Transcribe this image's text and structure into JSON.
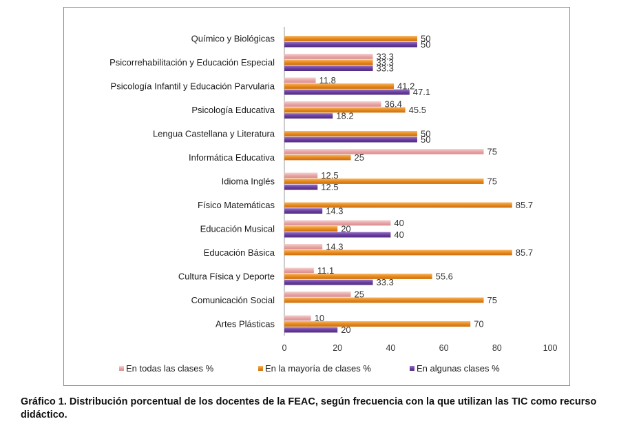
{
  "caption": "Gráfico 1. Distribución porcentual de los docentes de la FEAC, según frecuencia con la que utilizan las TIC como recurso didáctico.",
  "chart_data": {
    "type": "bar",
    "orientation": "horizontal",
    "categories": [
      "Químico y Biológicas",
      "Psicorrehabilitación y Educación Especial",
      "Psicología Infantil y Educación Parvularia",
      "Psicología Educativa",
      "Lengua Castellana y Literatura",
      "Informática Educativa",
      "Idioma Inglés",
      "Físico Matemáticas",
      "Educación Musical",
      "Educación Básica",
      "Cultura Física y Deporte",
      "Comunicación Social",
      "Artes Plásticas"
    ],
    "series": [
      {
        "name": "En todas las clases %",
        "color": "#e8a6a6",
        "values": [
          null,
          33.3,
          11.8,
          36.4,
          null,
          75,
          12.5,
          null,
          40,
          14.3,
          11.1,
          25,
          10
        ],
        "labels": [
          "",
          "33.3",
          "11.8",
          "36.4",
          "",
          "75",
          "12.5",
          "",
          "40",
          "14.3",
          "11.1",
          "25",
          "10"
        ]
      },
      {
        "name": "En la mayoría de clases %",
        "color": "#e8891e",
        "values": [
          50,
          33.3,
          41.2,
          45.5,
          50,
          25,
          75,
          85.7,
          20,
          85.7,
          55.6,
          75,
          70
        ],
        "labels": [
          "50",
          "33.3",
          "41.2",
          "45.5",
          "50",
          "25",
          "75",
          "85.7",
          "20",
          "85.7",
          "55.6",
          "75",
          "70"
        ]
      },
      {
        "name": "En algunas clases %",
        "color": "#6b3fa0",
        "values": [
          50,
          33.3,
          47.1,
          18.2,
          50,
          null,
          12.5,
          14.3,
          40,
          null,
          33.3,
          null,
          20
        ],
        "labels": [
          "50",
          "33.3",
          "47.1",
          "18.2",
          "50",
          "",
          "12.5",
          "14.3",
          "40",
          "",
          "33.3",
          "",
          "20"
        ]
      }
    ],
    "xlim": [
      0,
      100
    ],
    "xticks": [
      "0",
      "20",
      "40",
      "60",
      "80",
      "100"
    ],
    "grid": false,
    "legend": "bottom"
  }
}
